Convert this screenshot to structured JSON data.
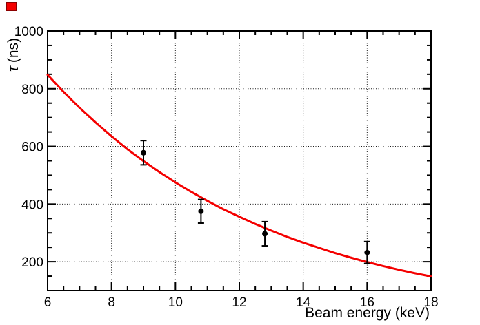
{
  "window": {
    "background": "#ffffff"
  },
  "red_marker": {
    "color": "#f40000",
    "border_color": "#8b0000"
  },
  "chart_data": {
    "type": "line+scatter",
    "title": "",
    "xlabel": "Beam energy (keV)",
    "ylabel_tau": "τ",
    "ylabel_units": "(ns)",
    "xlim": [
      6,
      18
    ],
    "ylim": [
      100,
      1000
    ],
    "x_major_ticks": [
      6,
      8,
      10,
      12,
      14,
      16,
      18
    ],
    "x_tick_labels": [
      "6",
      "8",
      "10",
      "12",
      "14",
      "16",
      "18"
    ],
    "x_minor_step": 0.5,
    "y_major_ticks": [
      200,
      400,
      600,
      800,
      1000
    ],
    "y_tick_labels": [
      "200",
      "400",
      "600",
      "800",
      "1000"
    ],
    "y_minor_step": 50,
    "grid": {
      "style": "dotted",
      "color": "#1a1a1a",
      "x_values": [
        8,
        10,
        12,
        14,
        16
      ],
      "y_values": [
        200,
        400,
        600,
        800
      ]
    },
    "axis_color": "#000000",
    "legend": null,
    "series": [
      {
        "name": "fit-curve",
        "type": "line",
        "color": "#f40000",
        "width": 3,
        "x": [
          6,
          6.5,
          7,
          7.5,
          8,
          8.5,
          9,
          9.5,
          10,
          10.5,
          11,
          11.5,
          12,
          12.5,
          13,
          13.5,
          14,
          14.5,
          15,
          15.5,
          16,
          16.5,
          17,
          17.5,
          18
        ],
        "y": [
          848,
          789,
          734,
          683,
          635,
          590,
          549,
          511,
          475,
          442,
          411,
          382,
          356,
          331,
          308,
          286,
          266,
          248,
          230,
          214,
          199,
          185,
          172,
          160,
          149
        ]
      },
      {
        "name": "data-points",
        "type": "scatter",
        "color": "#000000",
        "marker": "filled-circle",
        "marker_radius": 4,
        "x": [
          9.0,
          10.8,
          12.8,
          16.0
        ],
        "y": [
          578,
          375,
          297,
          232
        ],
        "yerr": [
          42,
          41,
          42,
          38
        ]
      }
    ]
  }
}
